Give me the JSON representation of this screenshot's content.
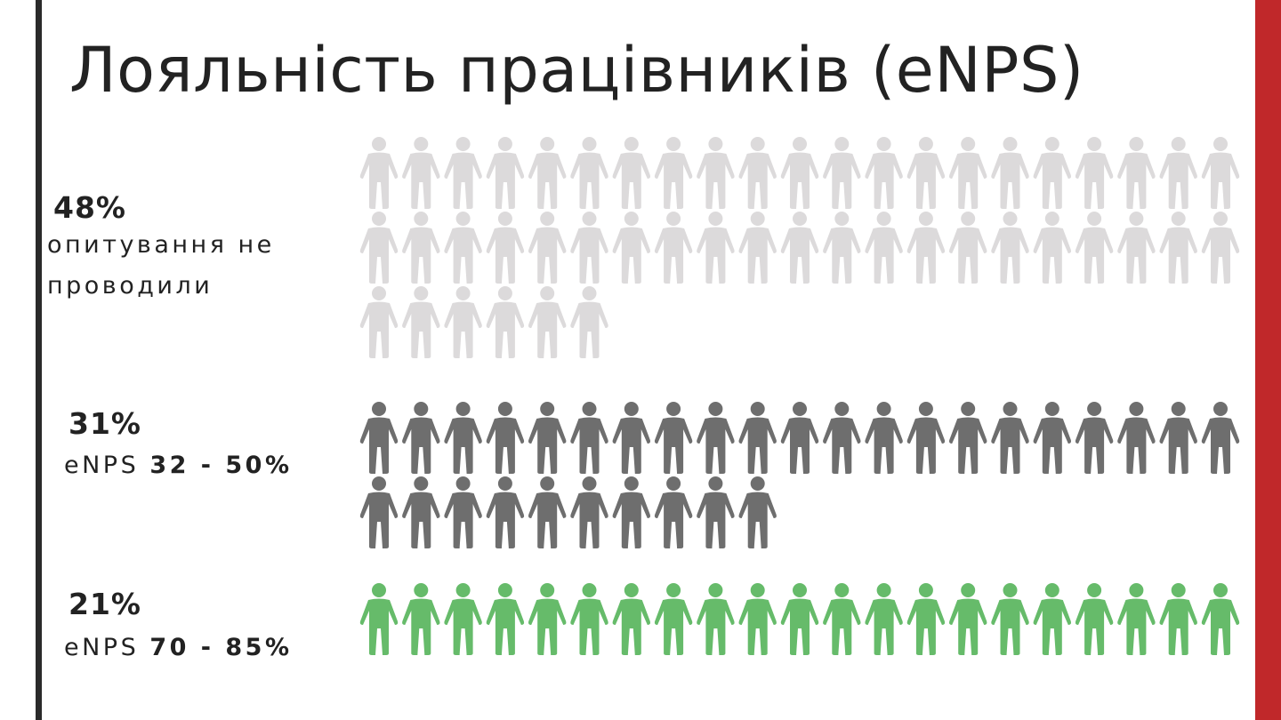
{
  "title": "Лояльність працівників (eNPS)",
  "colors": {
    "accent_bar": "#c0282a",
    "left_bar": "#2a2a2a"
  },
  "chart_data": {
    "type": "pictogram",
    "unit": "person-icon",
    "per_row": 21,
    "groups": [
      {
        "percent_label": "48%",
        "count": 48,
        "color": "#dcdadb",
        "desc_line1": "опитування не",
        "desc_line2": "проводили"
      },
      {
        "percent_label": "31%",
        "count": 31,
        "color": "#6e6e6e",
        "desc_prefix": "eNPS ",
        "desc_range": "32 - 50%"
      },
      {
        "percent_label": "21%",
        "count": 21,
        "color": "#66bb6a",
        "desc_prefix": "eNPS ",
        "desc_range": "70 - 85%"
      }
    ]
  }
}
